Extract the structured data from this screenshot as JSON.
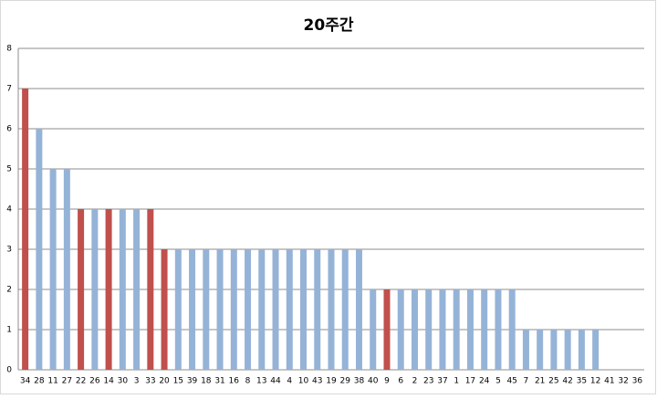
{
  "chart_data": {
    "type": "bar",
    "title": "20주간",
    "categories": [
      "34",
      "28",
      "11",
      "27",
      "22",
      "26",
      "14",
      "30",
      "3",
      "33",
      "20",
      "15",
      "39",
      "18",
      "31",
      "16",
      "8",
      "13",
      "44",
      "4",
      "10",
      "43",
      "19",
      "29",
      "38",
      "40",
      "9",
      "6",
      "2",
      "23",
      "37",
      "1",
      "17",
      "24",
      "5",
      "45",
      "7",
      "21",
      "25",
      "42",
      "35",
      "12",
      "41",
      "32",
      "36"
    ],
    "values": [
      7,
      6,
      5,
      5,
      4,
      4,
      4,
      4,
      4,
      4,
      3,
      3,
      3,
      3,
      3,
      3,
      3,
      3,
      3,
      3,
      3,
      3,
      3,
      3,
      3,
      2,
      2,
      2,
      2,
      2,
      2,
      2,
      2,
      2,
      2,
      2,
      1,
      1,
      1,
      1,
      1,
      1,
      0,
      0,
      0
    ],
    "colors": [
      "#c0504d",
      "#95b3d7",
      "#95b3d7",
      "#95b3d7",
      "#c0504d",
      "#95b3d7",
      "#c0504d",
      "#95b3d7",
      "#95b3d7",
      "#c0504d",
      "#c0504d",
      "#95b3d7",
      "#95b3d7",
      "#95b3d7",
      "#95b3d7",
      "#95b3d7",
      "#95b3d7",
      "#95b3d7",
      "#95b3d7",
      "#95b3d7",
      "#95b3d7",
      "#95b3d7",
      "#95b3d7",
      "#95b3d7",
      "#95b3d7",
      "#95b3d7",
      "#c0504d",
      "#95b3d7",
      "#95b3d7",
      "#95b3d7",
      "#95b3d7",
      "#95b3d7",
      "#95b3d7",
      "#95b3d7",
      "#95b3d7",
      "#95b3d7",
      "#95b3d7",
      "#95b3d7",
      "#95b3d7",
      "#95b3d7",
      "#95b3d7",
      "#95b3d7",
      "#95b3d7",
      "#95b3d7",
      "#95b3d7"
    ],
    "ylim": [
      0,
      8
    ],
    "yticks": [
      0,
      1,
      2,
      3,
      4,
      5,
      6,
      7,
      8
    ],
    "grid": true
  }
}
